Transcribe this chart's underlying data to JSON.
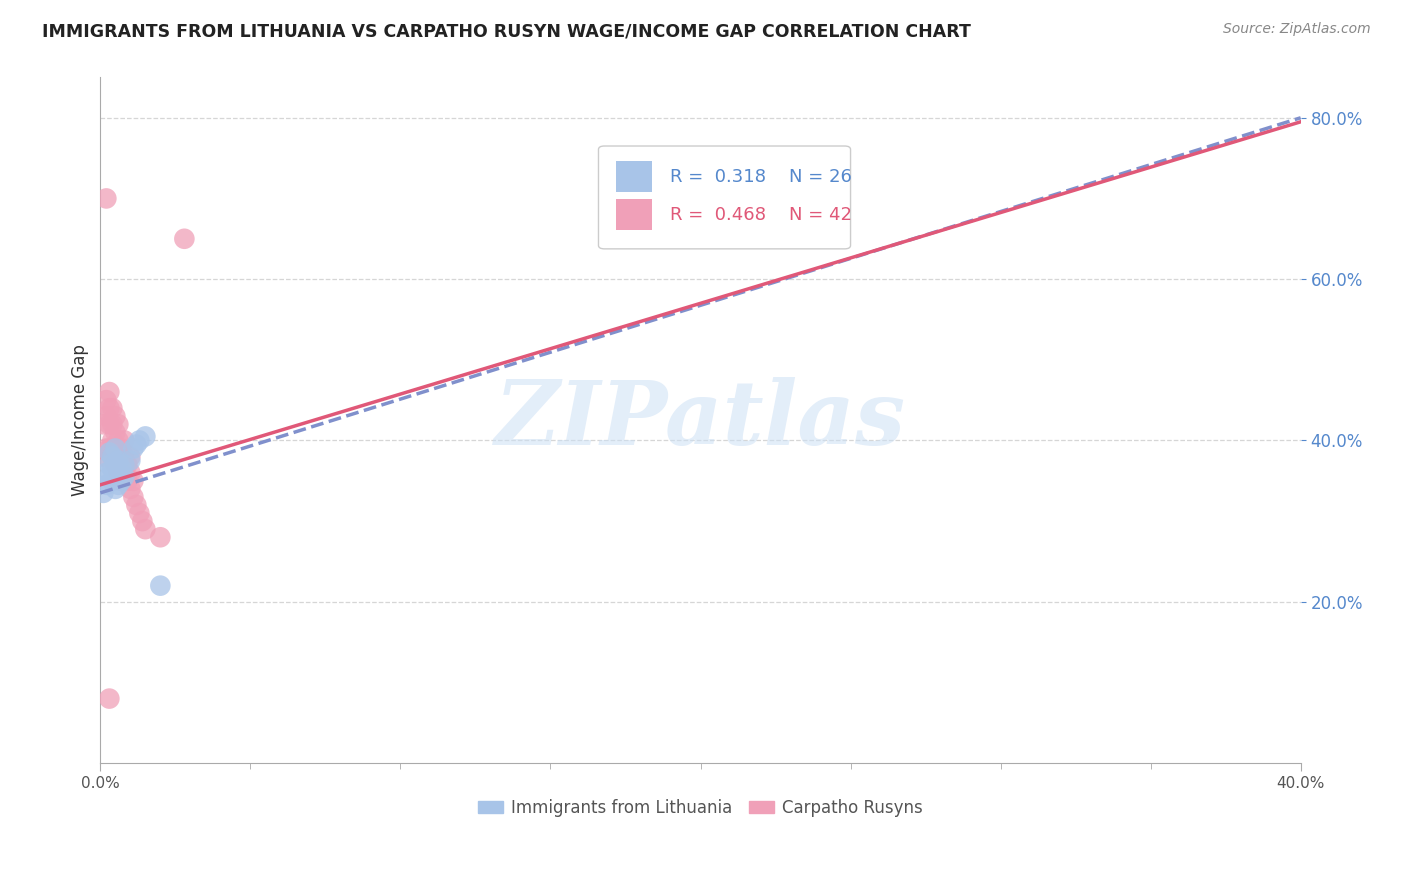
{
  "title": "IMMIGRANTS FROM LITHUANIA VS CARPATHO RUSYN WAGE/INCOME GAP CORRELATION CHART",
  "source": "Source: ZipAtlas.com",
  "ylabel": "Wage/Income Gap",
  "xlim": [
    0.0,
    0.4
  ],
  "ylim": [
    0.0,
    0.85
  ],
  "watermark_text": "ZIPatlas",
  "legend_R1": "0.318",
  "legend_N1": "26",
  "legend_R2": "0.468",
  "legend_N2": "42",
  "blue_color": "#a8c4e8",
  "pink_color": "#f0a0b8",
  "blue_line_color": "#8090cc",
  "pink_line_color": "#e05878",
  "grid_color": "#cccccc",
  "background_color": "#ffffff",
  "title_color": "#222222",
  "source_color": "#888888",
  "yaxis_tick_color": "#5588cc",
  "blue_scatter_x": [
    0.001,
    0.002,
    0.002,
    0.003,
    0.003,
    0.003,
    0.004,
    0.004,
    0.004,
    0.005,
    0.005,
    0.005,
    0.005,
    0.006,
    0.006,
    0.006,
    0.007,
    0.007,
    0.008,
    0.008,
    0.01,
    0.011,
    0.012,
    0.013,
    0.015,
    0.02
  ],
  "blue_scatter_y": [
    0.335,
    0.345,
    0.36,
    0.355,
    0.37,
    0.385,
    0.35,
    0.365,
    0.38,
    0.34,
    0.355,
    0.37,
    0.39,
    0.345,
    0.36,
    0.375,
    0.35,
    0.365,
    0.355,
    0.37,
    0.375,
    0.39,
    0.395,
    0.4,
    0.405,
    0.22
  ],
  "pink_scatter_x": [
    0.001,
    0.001,
    0.002,
    0.002,
    0.002,
    0.003,
    0.003,
    0.003,
    0.003,
    0.004,
    0.004,
    0.004,
    0.004,
    0.005,
    0.005,
    0.005,
    0.005,
    0.006,
    0.006,
    0.006,
    0.006,
    0.007,
    0.007,
    0.007,
    0.008,
    0.008,
    0.008,
    0.009,
    0.009,
    0.01,
    0.01,
    0.01,
    0.011,
    0.011,
    0.012,
    0.013,
    0.014,
    0.015,
    0.02,
    0.028,
    0.002,
    0.003
  ],
  "pink_scatter_y": [
    0.38,
    0.42,
    0.39,
    0.43,
    0.45,
    0.39,
    0.42,
    0.44,
    0.46,
    0.38,
    0.4,
    0.42,
    0.44,
    0.37,
    0.39,
    0.41,
    0.43,
    0.36,
    0.38,
    0.4,
    0.42,
    0.35,
    0.37,
    0.39,
    0.36,
    0.38,
    0.4,
    0.35,
    0.37,
    0.34,
    0.36,
    0.38,
    0.33,
    0.35,
    0.32,
    0.31,
    0.3,
    0.29,
    0.28,
    0.65,
    0.7,
    0.08
  ],
  "blue_line_x0": 0.0,
  "blue_line_y0": 0.335,
  "blue_line_x1": 0.4,
  "blue_line_y1": 0.8,
  "pink_line_x0": 0.0,
  "pink_line_y0": 0.345,
  "pink_line_x1": 0.4,
  "pink_line_y1": 0.795
}
